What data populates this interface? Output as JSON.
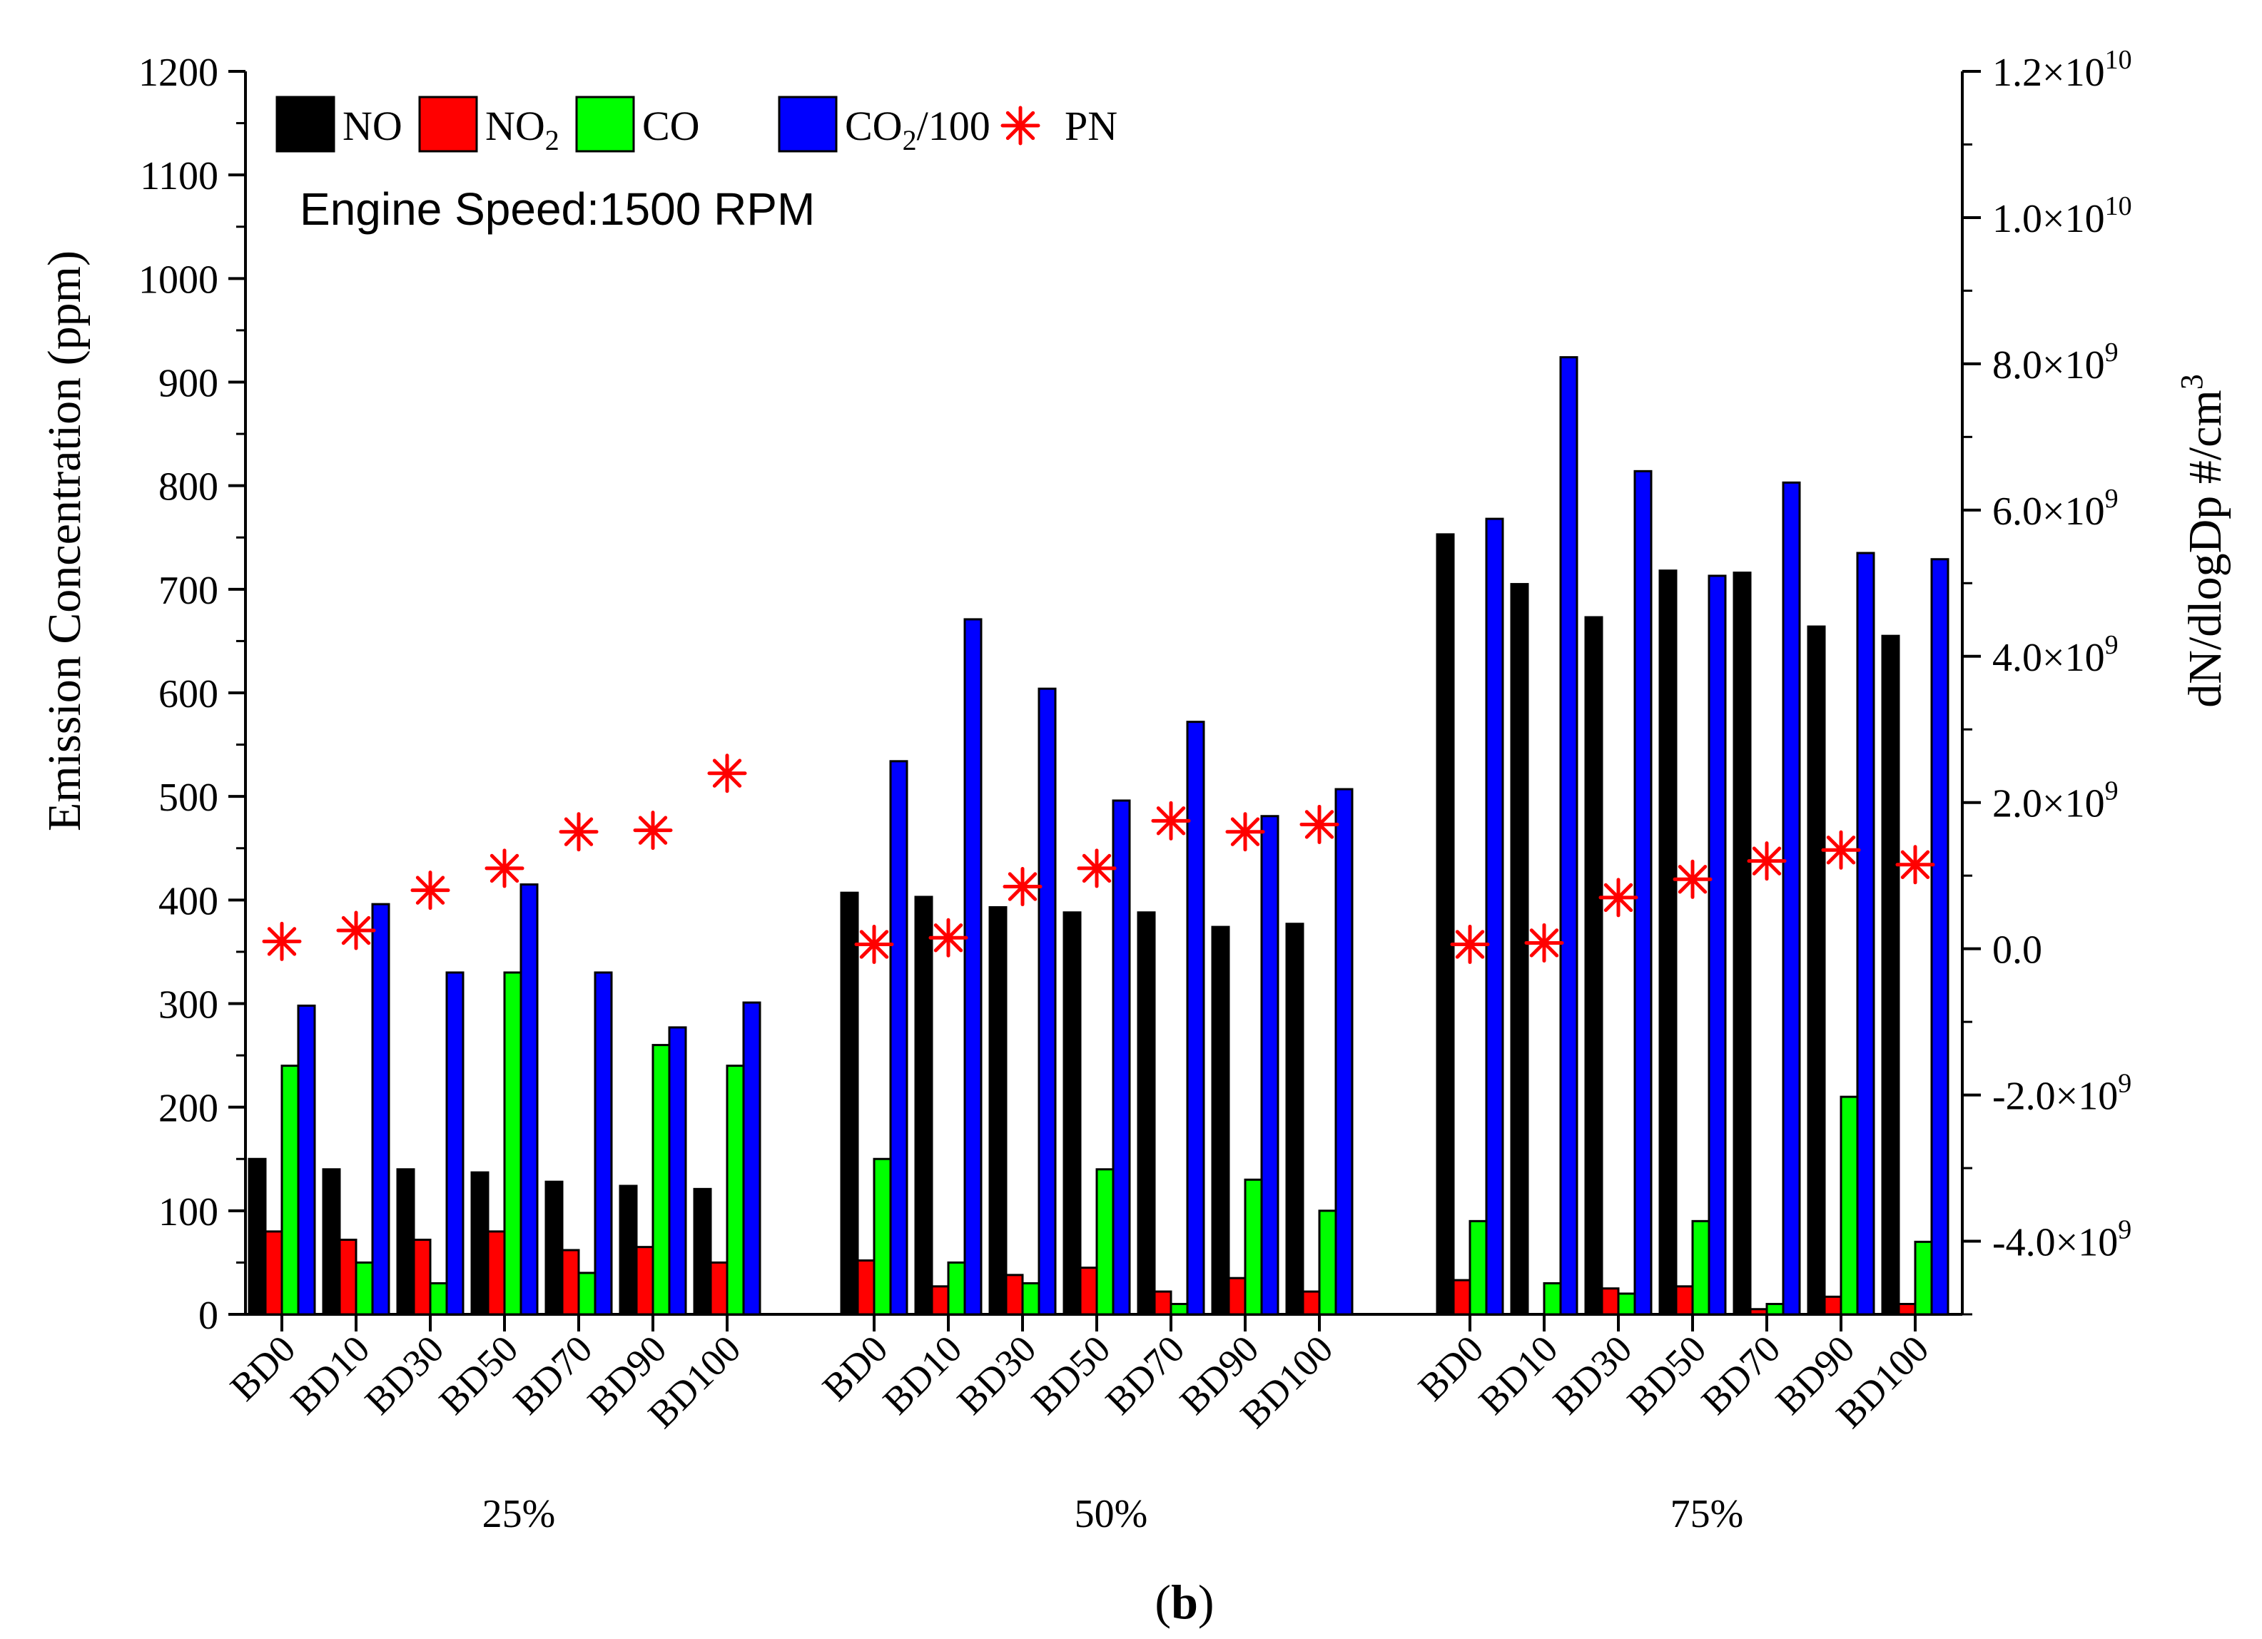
{
  "chart_data": {
    "type": "bar",
    "title": "Engine Speed:1500 RPM",
    "caption_letter": "b",
    "ylabel": "Emission Concentration (ppm)",
    "ylabel_right": "dN/dlogDp #/cm",
    "ylabel_right_sup": "3",
    "ylim": [
      0,
      1200
    ],
    "yticks": [
      "0",
      "100",
      "200",
      "300",
      "400",
      "500",
      "600",
      "700",
      "800",
      "900",
      "1000",
      "1100",
      "1200"
    ],
    "y2lim": [
      -5000000000,
      12000000000
    ],
    "y2ticks": [
      {
        "value": -4000000000,
        "mant": "-4.0×10",
        "exp": "9"
      },
      {
        "value": -2000000000,
        "mant": "-2.0×10",
        "exp": "9"
      },
      {
        "value": 0,
        "mant": "0.0",
        "exp": ""
      },
      {
        "value": 2000000000,
        "mant": "2.0×10",
        "exp": "9"
      },
      {
        "value": 4000000000,
        "mant": "4.0×10",
        "exp": "9"
      },
      {
        "value": 6000000000,
        "mant": "6.0×10",
        "exp": "9"
      },
      {
        "value": 8000000000,
        "mant": "8.0×10",
        "exp": "9"
      },
      {
        "value": 10000000000,
        "mant": "1.0×10",
        "exp": "10"
      },
      {
        "value": 12000000000,
        "mant": "1.2×10",
        "exp": "10"
      }
    ],
    "fuels": [
      "BD0",
      "BD10",
      "BD30",
      "BD50",
      "BD70",
      "BD90",
      "BD100"
    ],
    "load_groups": [
      "25%",
      "50%",
      "75%"
    ],
    "legend": [
      {
        "text": "NO",
        "sub": "",
        "after": ""
      },
      {
        "text": "NO",
        "sub": "2",
        "after": ""
      },
      {
        "text": "CO",
        "sub": "",
        "after": ""
      },
      {
        "text": "CO",
        "sub": "2",
        "after": "/100"
      },
      {
        "text": "PN",
        "sub": "",
        "after": ""
      }
    ],
    "series": [
      {
        "name": "NO",
        "color": "#000000",
        "values": [
          [
            150,
            140,
            140,
            137,
            128,
            124,
            121
          ],
          [
            407,
            403,
            393,
            388,
            388,
            374,
            377
          ],
          [
            753,
            705,
            673,
            718,
            716,
            664,
            655
          ]
        ]
      },
      {
        "name": "NO2",
        "color": "#ff0000",
        "values": [
          [
            80,
            72,
            72,
            80,
            62,
            65,
            50
          ],
          [
            52,
            27,
            38,
            45,
            22,
            35,
            22
          ],
          [
            33,
            0,
            25,
            27,
            5,
            17,
            10
          ]
        ]
      },
      {
        "name": "CO",
        "color": "#00ff00",
        "values": [
          [
            240,
            50,
            30,
            330,
            40,
            260,
            240
          ],
          [
            150,
            50,
            30,
            140,
            10,
            130,
            100
          ],
          [
            90,
            30,
            20,
            90,
            10,
            210,
            70
          ]
        ]
      },
      {
        "name": "CO2/100",
        "color": "#0000ff",
        "values": [
          [
            298,
            396,
            330,
            415,
            330,
            277,
            301
          ],
          [
            534,
            671,
            604,
            496,
            572,
            481,
            507
          ],
          [
            768,
            924,
            814,
            713,
            803,
            735,
            729
          ]
        ]
      },
      {
        "name": "PN",
        "color": "#ff0000",
        "marker": "asterisk",
        "axis": "right",
        "values": [
          [
            100000000,
            250000000,
            800000000,
            1100000000,
            1600000000,
            1620000000,
            2400000000
          ],
          [
            60000000,
            150000000,
            850000000,
            1100000000,
            1750000000,
            1600000000,
            1700000000
          ],
          [
            60000000,
            80000000,
            700000000,
            950000000,
            1200000000,
            1350000000,
            1150000000
          ]
        ]
      }
    ]
  }
}
